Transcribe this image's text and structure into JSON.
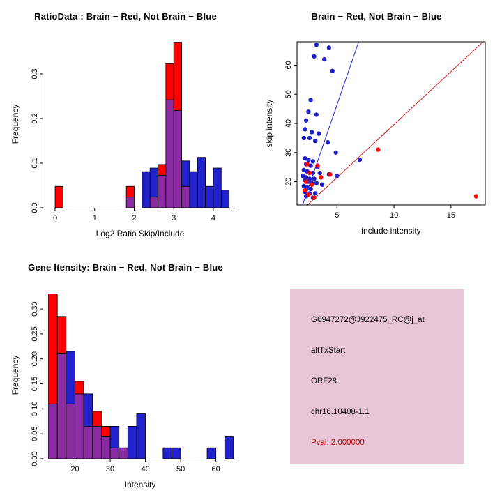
{
  "colors": {
    "red": "#FF0000",
    "blue": "#2222CC",
    "overlap": "#8B2BA2",
    "line_blue": "#2222CC",
    "line_red": "#CC2222",
    "axis": "#000000",
    "info_bg": "#E8C6D7",
    "pval_red": "#C00000",
    "background": "#FFFFFF"
  },
  "chart_data": [
    {
      "type": "bar",
      "title": "RatioData : Brain − Red, Not Brain − Blue",
      "xlabel": "Log2 Ratio Skip/Include",
      "ylabel": "Frequency",
      "xlim": [
        -0.3,
        4.6
      ],
      "ylim": [
        0,
        0.375
      ],
      "xticks": [
        0,
        1,
        2,
        3,
        4
      ],
      "xtick_labels": [
        "0",
        "1",
        "2",
        "3",
        "4"
      ],
      "yticks": [
        0.0,
        0.1,
        0.2,
        0.3
      ],
      "ytick_labels": [
        "0.0",
        "0.1",
        "0.2",
        "0.3"
      ],
      "grid": false,
      "legend": "none",
      "bin_width": 0.2,
      "bins": [
        {
          "x": 0.0,
          "red": 0.048,
          "blue": 0
        },
        {
          "x": 1.8,
          "red": 0.048,
          "blue": 0.024
        },
        {
          "x": 2.2,
          "red": 0,
          "blue": 0.081
        },
        {
          "x": 2.4,
          "red": 0.024,
          "blue": 0.089
        },
        {
          "x": 2.6,
          "red": 0.097,
          "blue": 0.073
        },
        {
          "x": 2.8,
          "red": 0.323,
          "blue": 0.242
        },
        {
          "x": 3.0,
          "red": 0.371,
          "blue": 0.218
        },
        {
          "x": 3.2,
          "red": 0.048,
          "blue": 0.105
        },
        {
          "x": 3.4,
          "red": 0,
          "blue": 0.081
        },
        {
          "x": 3.6,
          "red": 0,
          "blue": 0.113
        },
        {
          "x": 3.8,
          "red": 0,
          "blue": 0.048
        },
        {
          "x": 4.0,
          "red": 0,
          "blue": 0.089
        },
        {
          "x": 4.2,
          "red": 0,
          "blue": 0.04
        }
      ]
    },
    {
      "type": "scatter",
      "title": "Brain − Red, Not Brain − Blue",
      "xlabel": "include intensity",
      "ylabel": "skip intensity",
      "xlim": [
        1.5,
        18
      ],
      "ylim": [
        12,
        68
      ],
      "xticks": [
        5,
        10,
        15
      ],
      "xtick_labels": [
        "5",
        "10",
        "15"
      ],
      "yticks": [
        20,
        30,
        40,
        50,
        60
      ],
      "ytick_labels": [
        "20",
        "30",
        "40",
        "50",
        "60"
      ],
      "grid": false,
      "legend": "none",
      "series": [
        {
          "name": "not-brain",
          "color_key": "blue",
          "points": [
            [
              3.2,
              67
            ],
            [
              4.3,
              66
            ],
            [
              3.0,
              63
            ],
            [
              3.9,
              62
            ],
            [
              4.6,
              58
            ],
            [
              2.7,
              48
            ],
            [
              2.5,
              44
            ],
            [
              3.2,
              43
            ],
            [
              2.3,
              41
            ],
            [
              2.2,
              38
            ],
            [
              2.8,
              37
            ],
            [
              3.4,
              36.5
            ],
            [
              2.1,
              35
            ],
            [
              2.6,
              35
            ],
            [
              3.1,
              34
            ],
            [
              4.2,
              33.5
            ],
            [
              4.9,
              30
            ],
            [
              7.0,
              27.5
            ],
            [
              2.2,
              28
            ],
            [
              2.5,
              27.5
            ],
            [
              2.9,
              27
            ],
            [
              2.3,
              26
            ],
            [
              2.7,
              25.5
            ],
            [
              3.3,
              25
            ],
            [
              2.1,
              24
            ],
            [
              2.4,
              23.5
            ],
            [
              2.9,
              23
            ],
            [
              3.5,
              23
            ],
            [
              4.3,
              22.5
            ],
            [
              5.0,
              22
            ],
            [
              2.0,
              22
            ],
            [
              2.3,
              21.5
            ],
            [
              2.6,
              21
            ],
            [
              3.0,
              21
            ],
            [
              2.2,
              20.5
            ],
            [
              2.5,
              20
            ],
            [
              2.8,
              19.5
            ],
            [
              3.2,
              19.5
            ],
            [
              3.7,
              19
            ],
            [
              2.1,
              18.5
            ],
            [
              2.4,
              18
            ],
            [
              2.7,
              17.5
            ],
            [
              2.2,
              16.5
            ],
            [
              2.6,
              16
            ],
            [
              3.1,
              16
            ],
            [
              2.3,
              15
            ],
            [
              2.9,
              14.5
            ]
          ]
        },
        {
          "name": "brain",
          "color_key": "red",
          "points": [
            [
              2.4,
              26
            ],
            [
              3.3,
              25.5
            ],
            [
              2.6,
              23
            ],
            [
              4.4,
              22.5
            ],
            [
              3.6,
              21.5
            ],
            [
              2.3,
              20
            ],
            [
              2.8,
              19
            ],
            [
              2.2,
              17
            ],
            [
              2.5,
              15.5
            ],
            [
              3.0,
              14.5
            ],
            [
              8.6,
              31
            ],
            [
              17.2,
              15
            ]
          ]
        }
      ],
      "lines": [
        {
          "color_key": "line_blue",
          "x1": 1.9,
          "y1": 11,
          "x2": 6.9,
          "y2": 68
        },
        {
          "color_key": "line_red",
          "x1": 2.0,
          "y1": 10.5,
          "x2": 17.8,
          "y2": 68
        }
      ]
    },
    {
      "type": "bar",
      "title": "Gene Itensity: Brain − Red, Not Brain − Blue",
      "xlabel": "Intensity",
      "ylabel": "Frequency",
      "xlim": [
        11,
        66
      ],
      "ylim": [
        0,
        0.335
      ],
      "xticks": [
        20,
        30,
        40,
        50,
        60
      ],
      "xtick_labels": [
        "20",
        "30",
        "40",
        "50",
        "60"
      ],
      "yticks": [
        0.0,
        0.05,
        0.1,
        0.15,
        0.2,
        0.25,
        0.3
      ],
      "ytick_labels": [
        "0.00",
        "0.05",
        "0.10",
        "0.15",
        "0.20",
        "0.25",
        "0.30"
      ],
      "grid": false,
      "legend": "none",
      "bin_width": 2.5,
      "bins": [
        {
          "x": 12.5,
          "red": 0.33,
          "blue": 0.11
        },
        {
          "x": 15.0,
          "red": 0.285,
          "blue": 0.21
        },
        {
          "x": 17.5,
          "red": 0.11,
          "blue": 0.215
        },
        {
          "x": 20.0,
          "red": 0.155,
          "blue": 0.13
        },
        {
          "x": 22.5,
          "red": 0.065,
          "blue": 0.13
        },
        {
          "x": 25.0,
          "red": 0.095,
          "blue": 0.065
        },
        {
          "x": 27.5,
          "red": 0.065,
          "blue": 0.044
        },
        {
          "x": 30.0,
          "red": 0.022,
          "blue": 0.065
        },
        {
          "x": 32.5,
          "red": 0.022,
          "blue": 0.022
        },
        {
          "x": 35.0,
          "red": 0,
          "blue": 0.065
        },
        {
          "x": 37.5,
          "red": 0,
          "blue": 0.09
        },
        {
          "x": 45.0,
          "red": 0,
          "blue": 0.022
        },
        {
          "x": 47.5,
          "red": 0,
          "blue": 0.022
        },
        {
          "x": 57.5,
          "red": 0,
          "blue": 0.022
        },
        {
          "x": 62.5,
          "red": 0,
          "blue": 0.044
        }
      ]
    }
  ],
  "info_box": {
    "lines": [
      "G6947272@J922475_RC@j_at",
      "altTxStart",
      "ORF28",
      "chr16.10408-1.1"
    ],
    "pval": "Pval: 2.000000"
  }
}
